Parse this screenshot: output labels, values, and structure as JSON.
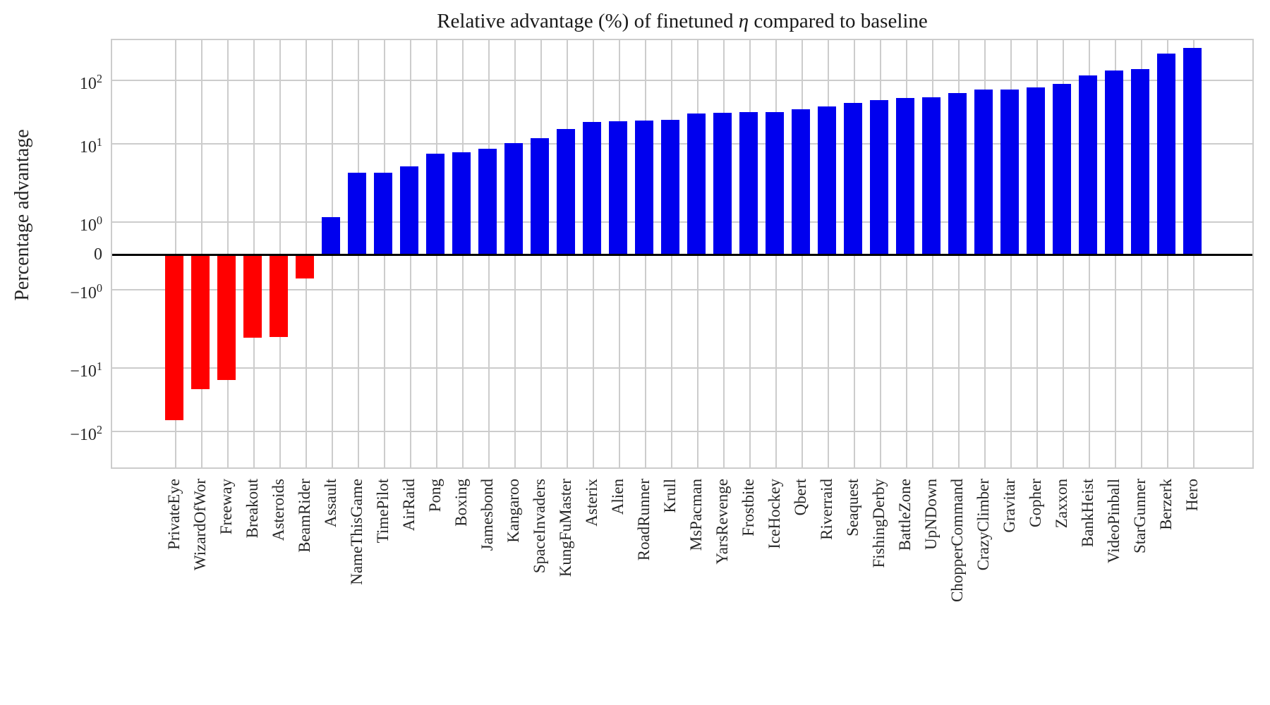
{
  "title": {
    "prefix": "Relative advantage (%) of finetuned ",
    "math": "η",
    "suffix": " compared to baseline"
  },
  "y_axis": {
    "label": "Percentage advantage",
    "ticks": [
      {
        "neg": false,
        "base": "10",
        "exp": "2",
        "value": 100
      },
      {
        "neg": false,
        "base": "10",
        "exp": "1",
        "value": 10
      },
      {
        "neg": false,
        "base": "10",
        "exp": "0",
        "value": 1
      },
      {
        "neg": false,
        "base": "0",
        "exp": "",
        "value": 0
      },
      {
        "neg": true,
        "base": "10",
        "exp": "0",
        "value": -1
      },
      {
        "neg": true,
        "base": "10",
        "exp": "1",
        "value": -10
      },
      {
        "neg": true,
        "base": "10",
        "exp": "2",
        "value": -100
      }
    ]
  },
  "chart_data": {
    "type": "bar",
    "title": "Relative advantage (%) of finetuned η compared to baseline",
    "xlabel": "",
    "ylabel": "Percentage advantage",
    "yscale": "symlog",
    "linthresh": 2,
    "ylim": [
      -410,
      430
    ],
    "grid": true,
    "legend": false,
    "colors": {
      "positive_bar": "#0000ee",
      "negative_bar": "#ff0000",
      "grid": "#cccccc",
      "zero_line": "#000000"
    },
    "categories": [
      "PrivateEye",
      "WizardOfWor",
      "Freeway",
      "Breakout",
      "Asteroids",
      "BeamRider",
      "Assault",
      "NameThisGame",
      "TimePilot",
      "AirRaid",
      "Pong",
      "Boxing",
      "Jamesbond",
      "Kangaroo",
      "SpaceInvaders",
      "KungFuMaster",
      "Asterix",
      "Alien",
      "RoadRunner",
      "Krull",
      "MsPacman",
      "YarsRevenge",
      "Frostbite",
      "IceHockey",
      "Qbert",
      "Riverraid",
      "Seaquest",
      "FishingDerby",
      "BattleZone",
      "UpNDown",
      "ChopperCommand",
      "CrazyClimber",
      "Gravitar",
      "Gopher",
      "Zaxxon",
      "BankHeist",
      "VideoPinball",
      "StarGunner",
      "Berzerk",
      "Hero"
    ],
    "values": [
      -70,
      -23,
      -16.5,
      -3.5,
      -3.4,
      -0.7,
      1.1,
      3.3,
      3.35,
      4.2,
      6.7,
      7.0,
      7.9,
      9.8,
      11.7,
      16.3,
      21,
      21.7,
      22.3,
      22.7,
      28.5,
      29,
      30,
      30.5,
      33,
      37,
      42,
      46,
      50,
      51,
      60,
      68,
      69,
      74,
      84,
      115,
      137,
      145,
      250,
      310
    ]
  }
}
